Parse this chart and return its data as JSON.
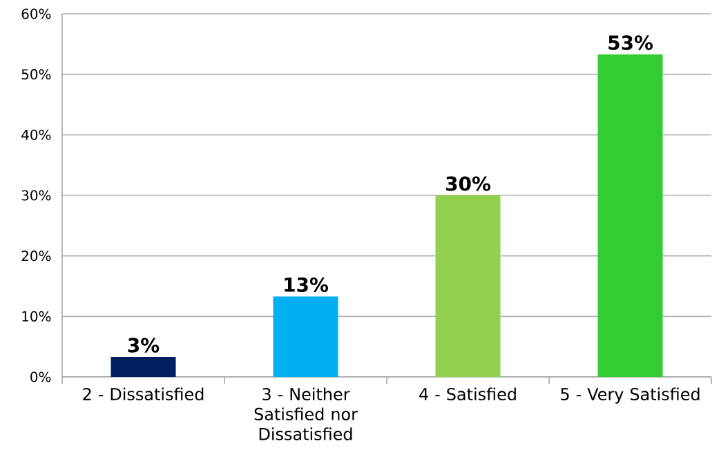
{
  "chart_data": {
    "type": "bar",
    "categories": [
      "2 - Dissatisfied",
      "3 - Neither Satisfied nor Dissatisfied",
      "4 - Satisfied",
      "5 - Very Satisfied"
    ],
    "values": [
      3.3,
      13.3,
      30,
      53.3
    ],
    "value_labels": [
      "3%",
      "13%",
      "30%",
      "53%"
    ],
    "colors": [
      "#002060",
      "#00b0f0",
      "#92d050",
      "#33cc33"
    ],
    "ylim": [
      0,
      60
    ],
    "yticks": [
      {
        "value": 0,
        "label": "0%"
      },
      {
        "value": 10,
        "label": "10%"
      },
      {
        "value": 20,
        "label": "20%"
      },
      {
        "value": 30,
        "label": "30%"
      },
      {
        "value": 40,
        "label": "40%"
      },
      {
        "value": 50,
        "label": "50%"
      },
      {
        "value": 60,
        "label": "60%"
      }
    ],
    "grid": "y"
  }
}
